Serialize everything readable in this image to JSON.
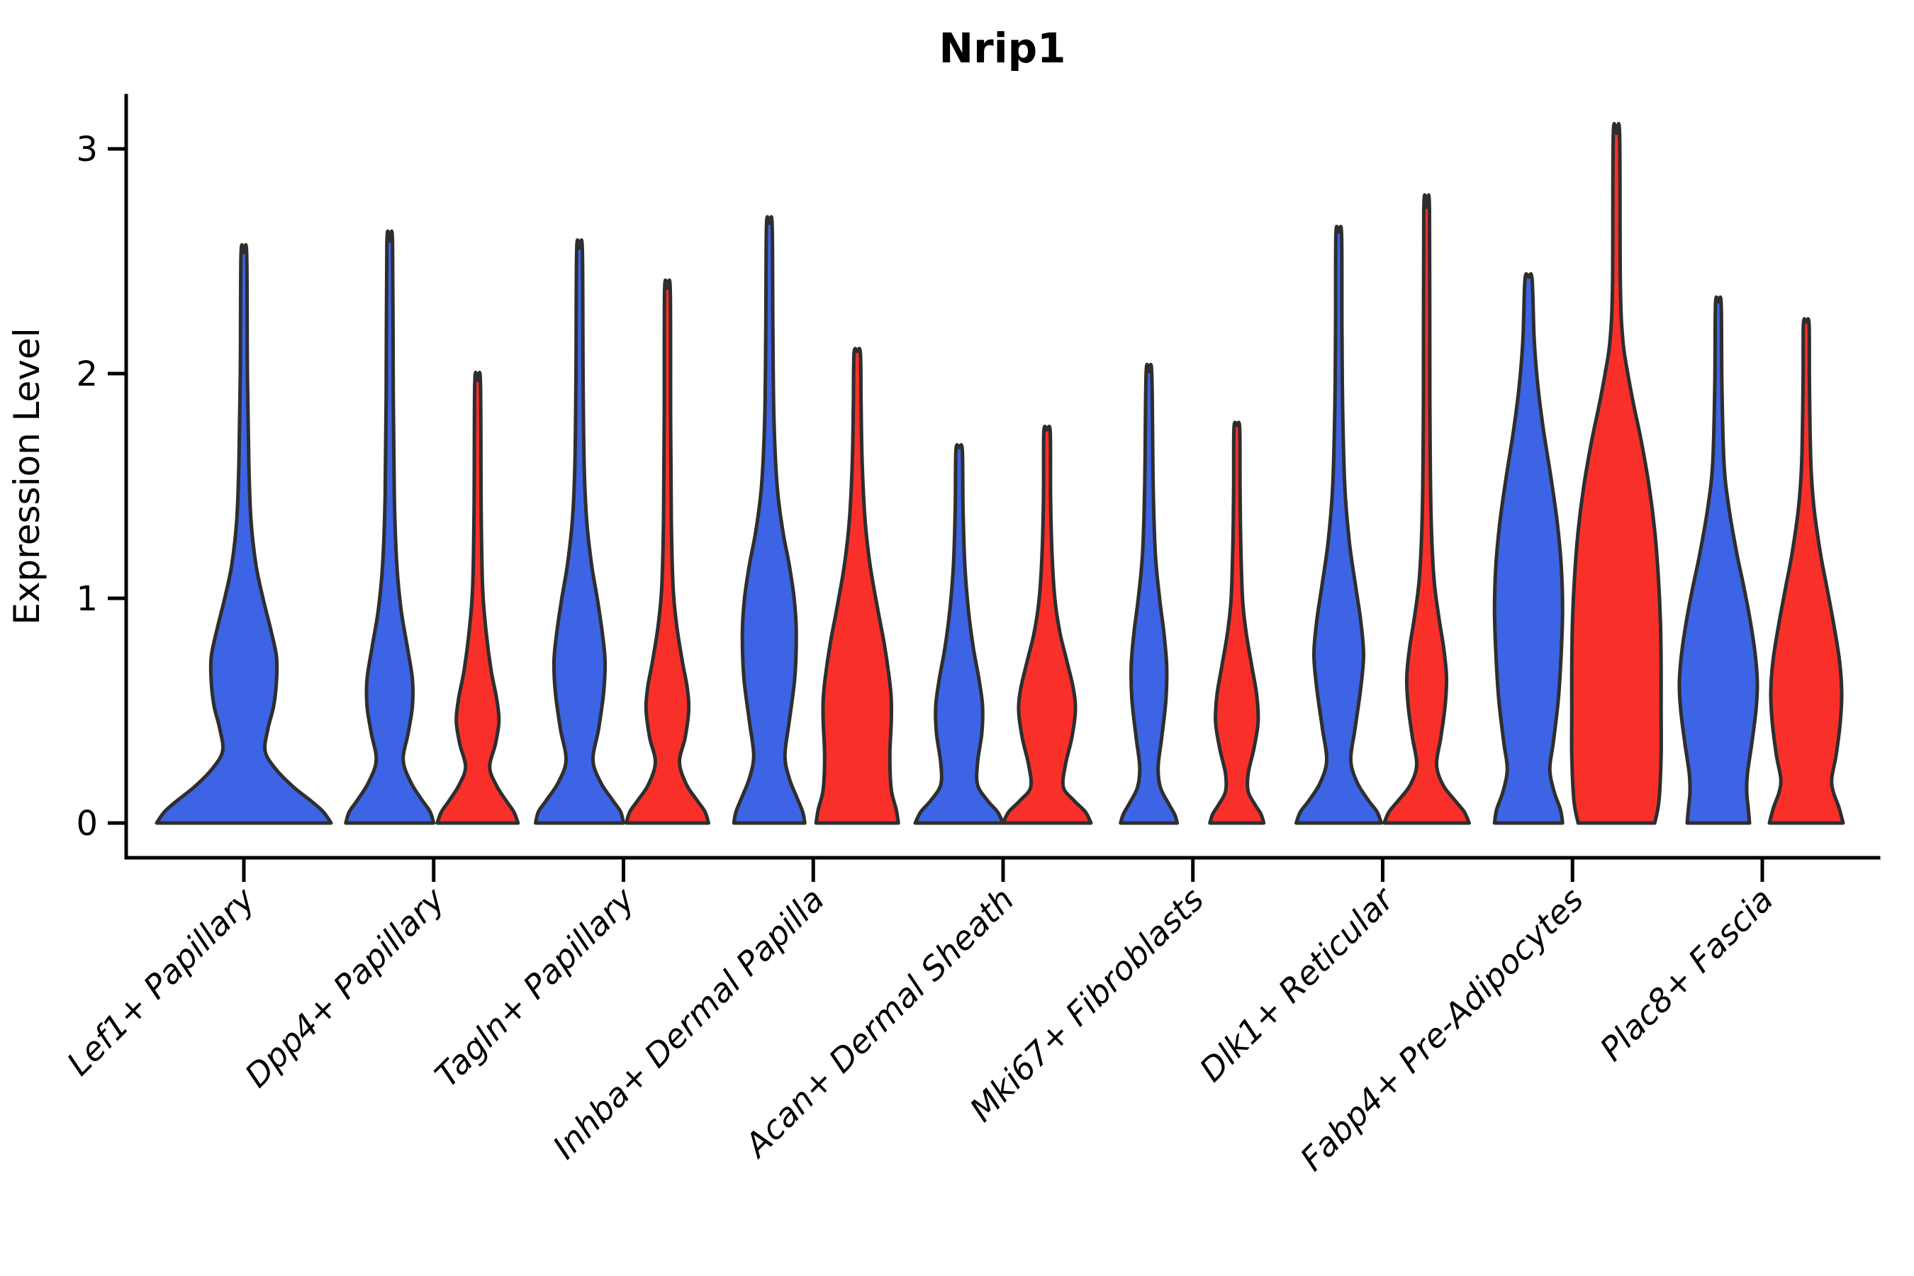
{
  "title": "Nrip1",
  "y_axis": {
    "label": "Expression Level",
    "ticks": [
      0,
      1,
      2,
      3
    ]
  },
  "x_axis": {
    "categories": [
      "Lef1+ Papillary",
      "Dpp4+ Papillary",
      "Tagln+ Papillary",
      "Inhba+ Dermal Papilla",
      "Acan+ Dermal Sheath",
      "Mki67+ Fibroblasts",
      "Dlk1+ Reticular",
      "Fabp4+ Pre-Adipocytes",
      "Plac8+ Fascia"
    ]
  },
  "colors": {
    "blue": "#3d64e4",
    "red": "#f9302a",
    "outline": "#2e2e2e",
    "axis": "#000000"
  },
  "chart_data": {
    "type": "violin",
    "title": "Nrip1",
    "xlabel": "",
    "ylabel": "Expression Level",
    "ylim": [
      0,
      3.15
    ],
    "yticks": [
      0,
      1,
      2,
      3
    ],
    "grid": false,
    "legend": "none",
    "categories": [
      "Lef1+ Papillary",
      "Dpp4+ Papillary",
      "Tagln+ Papillary",
      "Inhba+ Dermal Papilla",
      "Acan+ Dermal Sheath",
      "Mki67+ Fibroblasts",
      "Dlk1+ Reticular",
      "Fabp4+ Pre-Adipocytes",
      "Plac8+ Fascia"
    ],
    "groups": [
      "blue",
      "red"
    ],
    "profile_note": "profile = [expression_value, half_width] pairs describing the kernel density outline of each violin from baseline 0 to its maximum",
    "violins": [
      {
        "category": "Lef1+ Papillary",
        "category_index": 0,
        "group": "blue",
        "side": "center",
        "max_expression": 2.53,
        "profile": [
          [
            0,
            123
          ],
          [
            0.05,
            112
          ],
          [
            0.1,
            94
          ],
          [
            0.16,
            70
          ],
          [
            0.24,
            45
          ],
          [
            0.32,
            30
          ],
          [
            0.42,
            34
          ],
          [
            0.52,
            42
          ],
          [
            0.63,
            46
          ],
          [
            0.74,
            46
          ],
          [
            0.86,
            38
          ],
          [
            1.0,
            27
          ],
          [
            1.15,
            17
          ],
          [
            1.35,
            10
          ],
          [
            1.6,
            7
          ],
          [
            2.0,
            5
          ],
          [
            2.53,
            4
          ]
        ]
      },
      {
        "category": "Dpp4+ Papillary",
        "category_index": 1,
        "group": "blue",
        "side": "left",
        "max_expression": 2.58,
        "profile": [
          [
            0,
            62
          ],
          [
            0.05,
            57
          ],
          [
            0.1,
            46
          ],
          [
            0.18,
            30
          ],
          [
            0.28,
            19
          ],
          [
            0.4,
            26
          ],
          [
            0.52,
            32
          ],
          [
            0.64,
            32
          ],
          [
            0.78,
            25
          ],
          [
            0.95,
            16
          ],
          [
            1.15,
            10
          ],
          [
            1.45,
            6.5
          ],
          [
            1.9,
            5
          ],
          [
            2.58,
            4
          ]
        ]
      },
      {
        "category": "Dpp4+ Papillary",
        "category_index": 1,
        "group": "red",
        "side": "right",
        "max_expression": 1.96,
        "profile": [
          [
            0,
            57
          ],
          [
            0.05,
            51
          ],
          [
            0.1,
            40
          ],
          [
            0.17,
            26
          ],
          [
            0.25,
            17
          ],
          [
            0.35,
            25
          ],
          [
            0.45,
            30
          ],
          [
            0.55,
            27
          ],
          [
            0.68,
            19
          ],
          [
            0.85,
            12
          ],
          [
            1.05,
            7
          ],
          [
            1.4,
            5
          ],
          [
            1.96,
            4
          ]
        ]
      },
      {
        "category": "Tagln+ Papillary",
        "category_index": 2,
        "group": "blue",
        "side": "left",
        "max_expression": 2.55,
        "profile": [
          [
            0,
            62
          ],
          [
            0.05,
            58
          ],
          [
            0.1,
            47
          ],
          [
            0.18,
            30
          ],
          [
            0.28,
            19
          ],
          [
            0.42,
            27
          ],
          [
            0.58,
            34
          ],
          [
            0.72,
            36
          ],
          [
            0.85,
            32
          ],
          [
            1.0,
            25
          ],
          [
            1.15,
            17
          ],
          [
            1.35,
            10
          ],
          [
            1.6,
            6.5
          ],
          [
            2.0,
            5
          ],
          [
            2.55,
            4
          ]
        ]
      },
      {
        "category": "Tagln+ Papillary",
        "category_index": 2,
        "group": "red",
        "side": "right",
        "max_expression": 2.37,
        "profile": [
          [
            0,
            58
          ],
          [
            0.05,
            53
          ],
          [
            0.1,
            42
          ],
          [
            0.17,
            27
          ],
          [
            0.27,
            17
          ],
          [
            0.38,
            25
          ],
          [
            0.5,
            30
          ],
          [
            0.6,
            28
          ],
          [
            0.72,
            21
          ],
          [
            0.88,
            13
          ],
          [
            1.05,
            8
          ],
          [
            1.35,
            5.5
          ],
          [
            1.8,
            4.5
          ],
          [
            2.37,
            4
          ]
        ]
      },
      {
        "category": "Inhba+ Dermal Papilla",
        "category_index": 3,
        "group": "blue",
        "side": "left",
        "max_expression": 2.66,
        "profile": [
          [
            0,
            50
          ],
          [
            0.05,
            47
          ],
          [
            0.12,
            38
          ],
          [
            0.2,
            28
          ],
          [
            0.3,
            22
          ],
          [
            0.45,
            28
          ],
          [
            0.65,
            36
          ],
          [
            0.85,
            38
          ],
          [
            1.0,
            35
          ],
          [
            1.15,
            28
          ],
          [
            1.3,
            19
          ],
          [
            1.5,
            11
          ],
          [
            1.8,
            6.5
          ],
          [
            2.2,
            5
          ],
          [
            2.66,
            4
          ]
        ]
      },
      {
        "category": "Inhba+ Dermal Papilla",
        "category_index": 3,
        "group": "red",
        "side": "right",
        "max_expression": 2.09,
        "profile": [
          [
            0,
            58
          ],
          [
            0.06,
            55
          ],
          [
            0.15,
            48
          ],
          [
            0.3,
            46
          ],
          [
            0.45,
            48
          ],
          [
            0.55,
            48
          ],
          [
            0.65,
            45
          ],
          [
            0.8,
            38
          ],
          [
            0.95,
            29
          ],
          [
            1.15,
            18
          ],
          [
            1.35,
            11
          ],
          [
            1.6,
            7
          ],
          [
            1.85,
            5.5
          ],
          [
            2.09,
            4.5
          ]
        ]
      },
      {
        "category": "Acan+ Dermal Sheath",
        "category_index": 4,
        "group": "blue",
        "side": "left",
        "max_expression": 1.66,
        "profile": [
          [
            0,
            62
          ],
          [
            0.05,
            54
          ],
          [
            0.1,
            40
          ],
          [
            0.17,
            26
          ],
          [
            0.27,
            26
          ],
          [
            0.4,
            32
          ],
          [
            0.52,
            33
          ],
          [
            0.64,
            28
          ],
          [
            0.78,
            20
          ],
          [
            0.95,
            13
          ],
          [
            1.15,
            8
          ],
          [
            1.4,
            5.5
          ],
          [
            1.66,
            4.5
          ]
        ]
      },
      {
        "category": "Acan+ Dermal Sheath",
        "category_index": 4,
        "group": "red",
        "side": "right",
        "max_expression": 1.74,
        "profile": [
          [
            0,
            62
          ],
          [
            0.05,
            54
          ],
          [
            0.1,
            38
          ],
          [
            0.16,
            23
          ],
          [
            0.26,
            26
          ],
          [
            0.38,
            35
          ],
          [
            0.5,
            40
          ],
          [
            0.6,
            37
          ],
          [
            0.72,
            28
          ],
          [
            0.85,
            18
          ],
          [
            1.0,
            11
          ],
          [
            1.2,
            7
          ],
          [
            1.45,
            5
          ],
          [
            1.74,
            4.5
          ]
        ]
      },
      {
        "category": "Mki67+ Fibroblasts",
        "category_index": 5,
        "group": "blue",
        "side": "left",
        "max_expression": 2.0,
        "profile": [
          [
            0,
            40
          ],
          [
            0.04,
            36
          ],
          [
            0.09,
            27
          ],
          [
            0.16,
            16
          ],
          [
            0.25,
            13
          ],
          [
            0.38,
            18
          ],
          [
            0.55,
            24
          ],
          [
            0.7,
            25
          ],
          [
            0.85,
            21
          ],
          [
            1.0,
            15
          ],
          [
            1.2,
            9
          ],
          [
            1.5,
            6
          ],
          [
            2.0,
            4
          ]
        ]
      },
      {
        "category": "Mki67+ Fibroblasts",
        "category_index": 5,
        "group": "red",
        "side": "right",
        "max_expression": 1.76,
        "profile": [
          [
            0,
            38
          ],
          [
            0.04,
            34
          ],
          [
            0.08,
            26
          ],
          [
            0.14,
            16
          ],
          [
            0.22,
            16
          ],
          [
            0.33,
            24
          ],
          [
            0.45,
            30
          ],
          [
            0.57,
            28
          ],
          [
            0.7,
            21
          ],
          [
            0.85,
            13
          ],
          [
            1.0,
            8
          ],
          [
            1.25,
            5.5
          ],
          [
            1.5,
            4.5
          ],
          [
            1.76,
            4
          ]
        ]
      },
      {
        "category": "Dlk1+ Reticular",
        "category_index": 6,
        "group": "blue",
        "side": "left",
        "max_expression": 2.62,
        "profile": [
          [
            0,
            60
          ],
          [
            0.05,
            54
          ],
          [
            0.1,
            42
          ],
          [
            0.18,
            26
          ],
          [
            0.28,
            17
          ],
          [
            0.42,
            23
          ],
          [
            0.6,
            31
          ],
          [
            0.75,
            35
          ],
          [
            0.9,
            31
          ],
          [
            1.05,
            24
          ],
          [
            1.25,
            15
          ],
          [
            1.5,
            8.5
          ],
          [
            1.85,
            5.5
          ],
          [
            2.2,
            4.5
          ],
          [
            2.62,
            4
          ]
        ]
      },
      {
        "category": "Dlk1+ Reticular",
        "category_index": 6,
        "group": "red",
        "side": "right",
        "max_expression": 2.73,
        "profile": [
          [
            0,
            60
          ],
          [
            0.05,
            53
          ],
          [
            0.1,
            40
          ],
          [
            0.17,
            23
          ],
          [
            0.26,
            14
          ],
          [
            0.38,
            20
          ],
          [
            0.52,
            26
          ],
          [
            0.65,
            28
          ],
          [
            0.78,
            24
          ],
          [
            0.92,
            17
          ],
          [
            1.1,
            10
          ],
          [
            1.4,
            6
          ],
          [
            1.9,
            4.5
          ],
          [
            2.73,
            4
          ]
        ]
      },
      {
        "category": "Fabp4+ Pre-Adipocytes",
        "category_index": 7,
        "group": "blue",
        "side": "left",
        "max_expression": 2.42,
        "profile": [
          [
            0,
            48
          ],
          [
            0.06,
            45
          ],
          [
            0.14,
            36
          ],
          [
            0.24,
            30
          ],
          [
            0.36,
            35
          ],
          [
            0.55,
            42
          ],
          [
            0.75,
            46
          ],
          [
            0.95,
            48
          ],
          [
            1.15,
            46
          ],
          [
            1.35,
            40
          ],
          [
            1.55,
            31
          ],
          [
            1.75,
            21
          ],
          [
            1.95,
            13
          ],
          [
            2.15,
            8
          ],
          [
            2.42,
            5
          ]
        ]
      },
      {
        "category": "Fabp4+ Pre-Adipocytes",
        "category_index": 7,
        "group": "red",
        "side": "right",
        "max_expression": 3.06,
        "profile": [
          [
            0,
            54
          ],
          [
            0.1,
            60
          ],
          [
            0.3,
            63
          ],
          [
            0.5,
            63
          ],
          [
            0.7,
            63
          ],
          [
            0.9,
            62
          ],
          [
            1.1,
            59
          ],
          [
            1.3,
            54
          ],
          [
            1.5,
            46
          ],
          [
            1.7,
            35
          ],
          [
            1.85,
            25
          ],
          [
            2.0,
            16
          ],
          [
            2.15,
            9
          ],
          [
            2.4,
            5.5
          ],
          [
            3.06,
            4.5
          ]
        ]
      },
      {
        "category": "Plac8+ Fascia",
        "category_index": 8,
        "group": "blue",
        "side": "left",
        "max_expression": 2.31,
        "profile": [
          [
            0,
            44
          ],
          [
            0.07,
            42
          ],
          [
            0.14,
            40
          ],
          [
            0.22,
            41
          ],
          [
            0.35,
            47
          ],
          [
            0.5,
            53
          ],
          [
            0.62,
            55
          ],
          [
            0.75,
            52
          ],
          [
            0.9,
            45
          ],
          [
            1.05,
            36
          ],
          [
            1.2,
            26
          ],
          [
            1.4,
            15
          ],
          [
            1.6,
            8
          ],
          [
            1.95,
            5
          ],
          [
            2.31,
            4
          ]
        ]
      },
      {
        "category": "Plac8+ Fascia",
        "category_index": 8,
        "group": "red",
        "side": "right",
        "max_expression": 2.22,
        "profile": [
          [
            0,
            52
          ],
          [
            0.07,
            46
          ],
          [
            0.14,
            38
          ],
          [
            0.2,
            36
          ],
          [
            0.3,
            42
          ],
          [
            0.45,
            48
          ],
          [
            0.58,
            50
          ],
          [
            0.72,
            47
          ],
          [
            0.88,
            39
          ],
          [
            1.05,
            29
          ],
          [
            1.2,
            20
          ],
          [
            1.4,
            11
          ],
          [
            1.6,
            6.5
          ],
          [
            1.95,
            4.5
          ],
          [
            2.22,
            4
          ]
        ]
      }
    ]
  }
}
